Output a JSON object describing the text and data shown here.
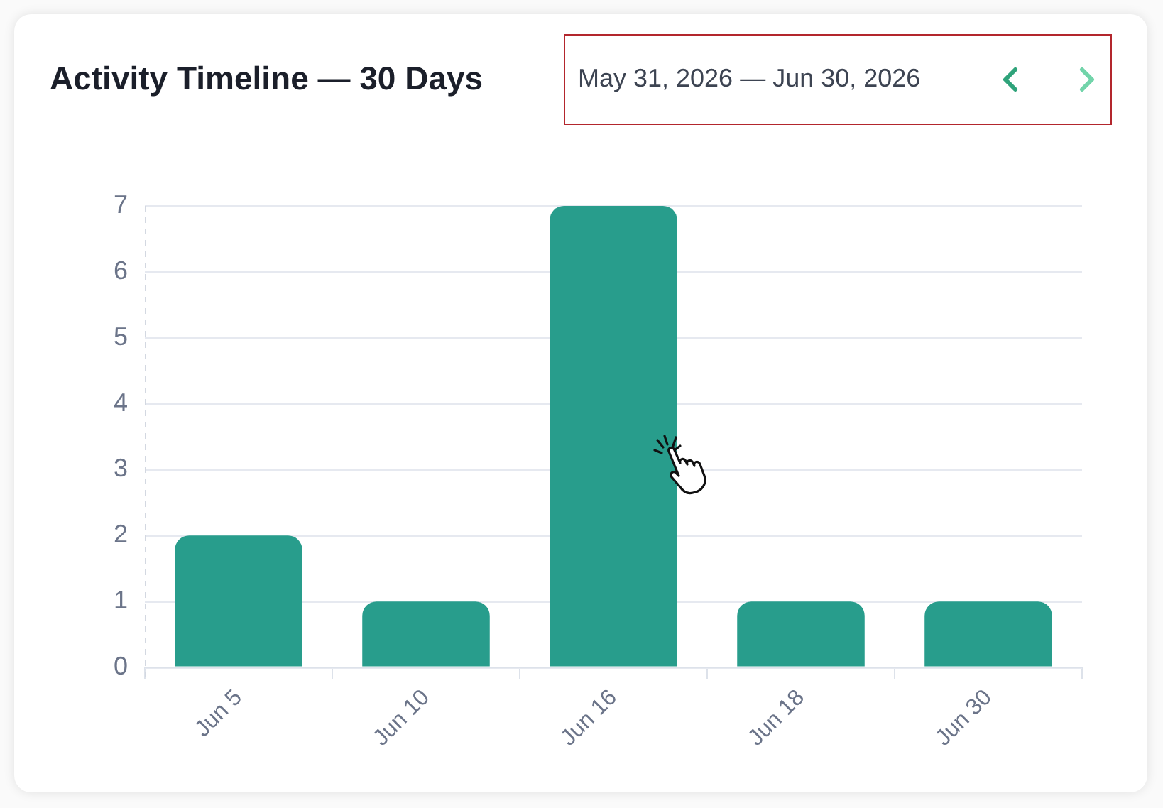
{
  "chart_data": {
    "type": "bar",
    "title": "Activity Timeline — 30 Days",
    "subtitle": "May 31, 2026 — Jun 30, 2026",
    "categories": [
      "Jun 5",
      "Jun 10",
      "Jun 16",
      "Jun 18",
      "Jun 30"
    ],
    "values": [
      2,
      1,
      7,
      1,
      1
    ],
    "color": "#289d8c",
    "ylim": [
      0,
      7
    ],
    "yticks": [
      0,
      1,
      2,
      3,
      4,
      5,
      6,
      7
    ],
    "grid": "y"
  }
}
